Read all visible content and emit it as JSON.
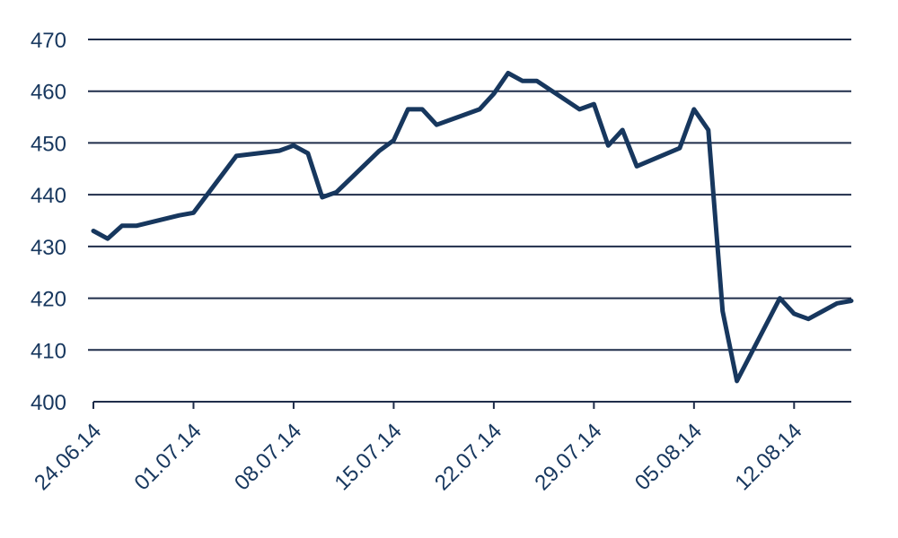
{
  "chart_data": {
    "type": "line",
    "title": "",
    "xlabel": "",
    "ylabel": "",
    "x_tick_labels": [
      "24.06.14",
      "01.07.14",
      "08.07.14",
      "15.07.14",
      "22.07.14",
      "29.07.14",
      "05.08.14",
      "12.08.14"
    ],
    "x_range": [
      "2014-06-24",
      "2014-08-16"
    ],
    "ylim": [
      400,
      470
    ],
    "y_ticks": [
      400,
      410,
      420,
      430,
      440,
      450,
      460,
      470
    ],
    "grid": "horizontal",
    "legend": "none",
    "line_color": "#17375e",
    "series": [
      {
        "x": [
          "2014-06-24",
          "2014-06-25",
          "2014-06-26",
          "2014-06-27",
          "2014-06-30",
          "2014-07-01",
          "2014-07-04",
          "2014-07-07",
          "2014-07-08",
          "2014-07-09",
          "2014-07-10",
          "2014-07-11",
          "2014-07-14",
          "2014-07-15",
          "2014-07-16",
          "2014-07-17",
          "2014-07-18",
          "2014-07-21",
          "2014-07-22",
          "2014-07-23",
          "2014-07-24",
          "2014-07-25",
          "2014-07-28",
          "2014-07-29",
          "2014-07-30",
          "2014-07-31",
          "2014-08-01",
          "2014-08-04",
          "2014-08-05",
          "2014-08-06",
          "2014-08-07",
          "2014-08-08",
          "2014-08-11",
          "2014-08-12",
          "2014-08-13",
          "2014-08-14",
          "2014-08-15",
          "2014-08-16"
        ],
        "y": [
          433,
          431.5,
          434,
          434,
          436,
          436.5,
          447.5,
          448.5,
          449.5,
          448,
          439.5,
          440.5,
          448.5,
          450.5,
          456.5,
          456.5,
          453.5,
          456.5,
          459.5,
          463.5,
          462,
          462,
          456.5,
          457.5,
          449.5,
          452.5,
          445.5,
          449,
          456.5,
          452.5,
          417.5,
          404,
          420,
          417,
          416,
          417.5,
          419,
          419.5
        ]
      }
    ]
  }
}
